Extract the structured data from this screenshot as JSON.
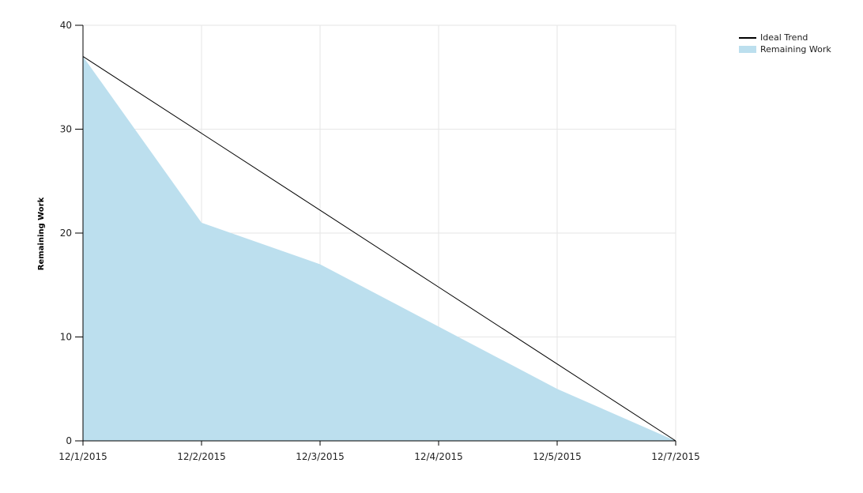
{
  "chart_data": {
    "type": "area",
    "ylabel": "Remaining Work",
    "xlabel": "",
    "title": "",
    "categories": [
      "12/1/2015",
      "12/2/2015",
      "12/3/2015",
      "12/4/2015",
      "12/5/2015",
      "12/7/2015"
    ],
    "ylim": [
      0,
      40
    ],
    "yticks": [
      0,
      10,
      20,
      30,
      40
    ],
    "grid": true,
    "legend_position": "top-right",
    "series": [
      {
        "name": "Ideal Trend",
        "kind": "line",
        "color": "#000000",
        "values": [
          37,
          29.6,
          22.2,
          14.8,
          7.4,
          0
        ]
      },
      {
        "name": "Remaining Work",
        "kind": "area",
        "color": "#bcdfee",
        "values": [
          37,
          21,
          17,
          11,
          5,
          0
        ]
      }
    ]
  }
}
